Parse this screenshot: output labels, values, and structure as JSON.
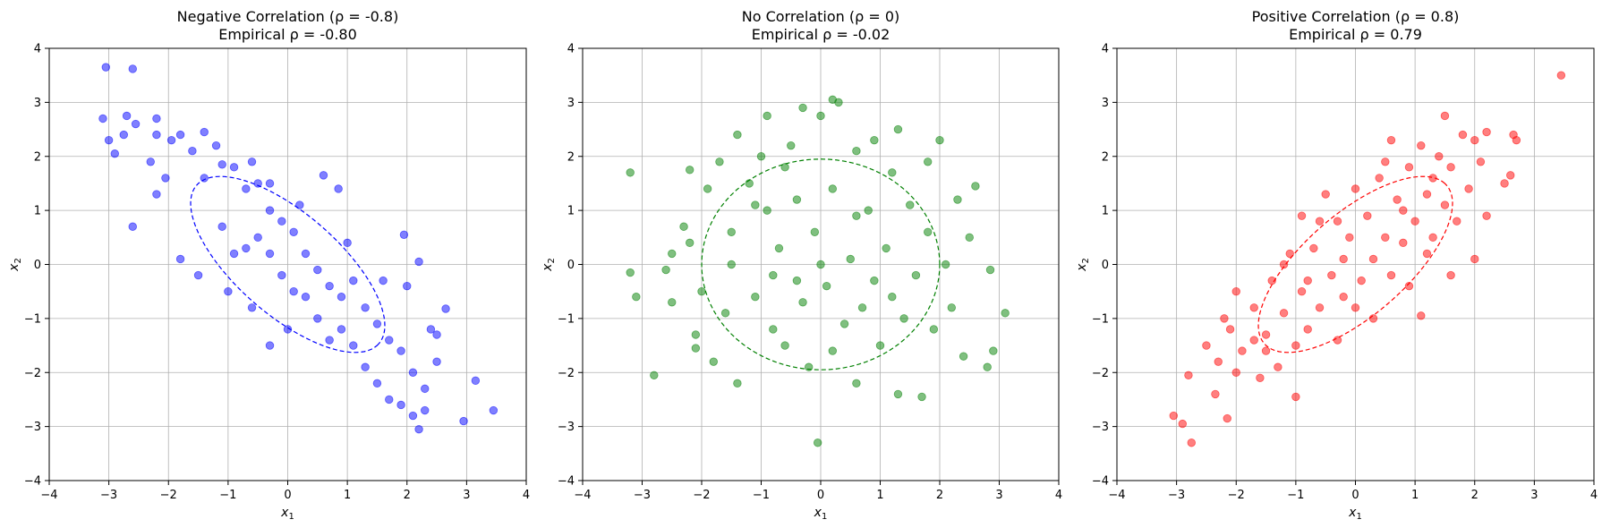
{
  "chart_data": [
    {
      "type": "scatter",
      "title": "Negative Correlation (ρ = -0.8)",
      "subtitle": "Empirical ρ = -0.80",
      "xlabel": "x",
      "xlabel_sub": "1",
      "ylabel": "x",
      "ylabel_sub": "2",
      "xlim": [
        -4,
        4
      ],
      "ylim": [
        -4,
        4
      ],
      "xticks": [
        -4,
        -3,
        -2,
        -1,
        0,
        1,
        2,
        3,
        4
      ],
      "yticks": [
        -4,
        -3,
        -2,
        -1,
        0,
        1,
        2,
        3,
        4
      ],
      "grid": true,
      "color": "#0000ff",
      "alpha": 0.5,
      "rho": -0.8,
      "ellipse": {
        "center": [
          0,
          0
        ],
        "semi_major": 2.12,
        "semi_minor": 0.9,
        "angle_deg": -45,
        "style": "dashed"
      },
      "series": [
        {
          "values": [
            [
              -3.05,
              3.65
            ],
            [
              -2.6,
              3.62
            ],
            [
              -3.1,
              2.7
            ],
            [
              -3.0,
              2.3
            ],
            [
              -2.9,
              2.05
            ],
            [
              -2.75,
              2.4
            ],
            [
              -2.7,
              2.75
            ],
            [
              -2.55,
              2.6
            ],
            [
              -2.6,
              0.7
            ],
            [
              -2.2,
              2.7
            ],
            [
              -2.2,
              2.4
            ],
            [
              -2.3,
              1.9
            ],
            [
              -2.2,
              1.3
            ],
            [
              -2.05,
              1.6
            ],
            [
              -1.95,
              2.3
            ],
            [
              -1.8,
              2.4
            ],
            [
              -1.6,
              2.1
            ],
            [
              -1.4,
              2.45
            ],
            [
              -1.4,
              1.6
            ],
            [
              -1.2,
              2.2
            ],
            [
              -1.1,
              1.85
            ],
            [
              -0.9,
              1.8
            ],
            [
              -1.1,
              0.7
            ],
            [
              -0.9,
              0.2
            ],
            [
              -0.7,
              0.3
            ],
            [
              -0.7,
              1.4
            ],
            [
              -0.5,
              1.5
            ],
            [
              -0.5,
              0.5
            ],
            [
              -0.3,
              1.0
            ],
            [
              -0.3,
              0.2
            ],
            [
              -0.1,
              0.8
            ],
            [
              -0.1,
              -0.2
            ],
            [
              0.1,
              0.6
            ],
            [
              0.1,
              -0.5
            ],
            [
              0.3,
              0.2
            ],
            [
              0.3,
              -0.6
            ],
            [
              0.5,
              -0.1
            ],
            [
              0.5,
              -1.0
            ],
            [
              0.7,
              -0.4
            ],
            [
              0.7,
              -1.4
            ],
            [
              0.9,
              -0.6
            ],
            [
              0.9,
              -1.2
            ],
            [
              1.1,
              -0.3
            ],
            [
              1.1,
              -1.5
            ],
            [
              1.3,
              -0.8
            ],
            [
              1.3,
              -1.9
            ],
            [
              1.5,
              -1.1
            ],
            [
              1.5,
              -2.2
            ],
            [
              1.7,
              -1.4
            ],
            [
              1.7,
              -2.5
            ],
            [
              1.9,
              -1.6
            ],
            [
              1.9,
              -2.6
            ],
            [
              2.1,
              -2.0
            ],
            [
              2.1,
              -2.8
            ],
            [
              2.3,
              -2.3
            ],
            [
              2.2,
              -3.05
            ],
            [
              2.3,
              -2.7
            ],
            [
              2.5,
              -1.8
            ],
            [
              2.5,
              -1.3
            ],
            [
              2.65,
              -0.82
            ],
            [
              2.0,
              -0.4
            ],
            [
              2.2,
              0.05
            ],
            [
              2.4,
              -1.2
            ],
            [
              3.15,
              -2.15
            ],
            [
              2.95,
              -2.9
            ],
            [
              3.45,
              -2.7
            ],
            [
              1.95,
              0.55
            ],
            [
              0.6,
              1.65
            ],
            [
              0.85,
              1.4
            ],
            [
              -0.3,
              -1.5
            ],
            [
              -0.6,
              -0.8
            ],
            [
              0.0,
              -1.2
            ],
            [
              -1.8,
              0.1
            ],
            [
              -1.5,
              -0.2
            ],
            [
              -1.0,
              -0.5
            ],
            [
              -0.3,
              1.5
            ],
            [
              0.2,
              1.1
            ],
            [
              -0.6,
              1.9
            ],
            [
              1.0,
              0.4
            ],
            [
              1.6,
              -0.3
            ]
          ]
        }
      ]
    },
    {
      "type": "scatter",
      "title": "No Correlation (ρ = 0)",
      "subtitle": "Empirical ρ = -0.02",
      "xlabel": "x",
      "xlabel_sub": "1",
      "ylabel": "x",
      "ylabel_sub": "2",
      "xlim": [
        -4,
        4
      ],
      "ylim": [
        -4,
        4
      ],
      "xticks": [
        -4,
        -3,
        -2,
        -1,
        0,
        1,
        2,
        3,
        4
      ],
      "yticks": [
        -4,
        -3,
        -2,
        -1,
        0,
        1,
        2,
        3,
        4
      ],
      "grid": true,
      "color": "#008000",
      "alpha": 0.5,
      "rho": 0,
      "ellipse": {
        "center": [
          0,
          0
        ],
        "semi_major": 2.0,
        "semi_minor": 1.95,
        "angle_deg": 0,
        "style": "dashed"
      },
      "series": [
        {
          "values": [
            [
              -3.2,
              1.7
            ],
            [
              -3.2,
              -0.15
            ],
            [
              -3.1,
              -0.6
            ],
            [
              -2.8,
              -2.05
            ],
            [
              -2.6,
              -0.1
            ],
            [
              -2.5,
              0.2
            ],
            [
              -2.3,
              0.7
            ],
            [
              -2.2,
              1.75
            ],
            [
              -2.1,
              -1.3
            ],
            [
              -2.1,
              -1.55
            ],
            [
              -2.0,
              -0.5
            ],
            [
              -1.9,
              1.4
            ],
            [
              -1.8,
              -1.8
            ],
            [
              -1.7,
              1.9
            ],
            [
              -1.6,
              -0.9
            ],
            [
              -1.5,
              0.6
            ],
            [
              -1.4,
              -2.2
            ],
            [
              -1.4,
              2.4
            ],
            [
              -1.2,
              1.5
            ],
            [
              -1.1,
              -0.6
            ],
            [
              -1.0,
              2.0
            ],
            [
              -0.9,
              1.0
            ],
            [
              -0.9,
              2.75
            ],
            [
              -0.8,
              -1.2
            ],
            [
              -0.7,
              0.3
            ],
            [
              -0.6,
              -1.5
            ],
            [
              -0.5,
              2.2
            ],
            [
              -0.4,
              -0.3
            ],
            [
              -0.4,
              1.2
            ],
            [
              -0.3,
              2.9
            ],
            [
              -0.2,
              -1.9
            ],
            [
              -0.1,
              0.6
            ],
            [
              -0.05,
              -3.3
            ],
            [
              0.0,
              2.75
            ],
            [
              0.1,
              -0.4
            ],
            [
              0.2,
              1.4
            ],
            [
              0.2,
              3.05
            ],
            [
              0.3,
              3.0
            ],
            [
              0.4,
              -1.1
            ],
            [
              0.5,
              0.1
            ],
            [
              0.6,
              2.1
            ],
            [
              0.6,
              -2.2
            ],
            [
              0.7,
              -0.8
            ],
            [
              0.8,
              1.0
            ],
            [
              0.9,
              2.3
            ],
            [
              1.0,
              -1.5
            ],
            [
              1.1,
              0.3
            ],
            [
              1.2,
              -0.6
            ],
            [
              1.3,
              2.5
            ],
            [
              1.3,
              -2.4
            ],
            [
              1.5,
              1.1
            ],
            [
              1.6,
              -0.2
            ],
            [
              1.7,
              -2.45
            ],
            [
              1.8,
              0.6
            ],
            [
              1.9,
              -1.2
            ],
            [
              2.0,
              2.3
            ],
            [
              2.1,
              0.0
            ],
            [
              2.2,
              -0.8
            ],
            [
              2.3,
              1.2
            ],
            [
              2.4,
              -1.7
            ],
            [
              2.5,
              0.5
            ],
            [
              2.6,
              1.45
            ],
            [
              2.8,
              -1.9
            ],
            [
              2.85,
              -0.1
            ],
            [
              2.9,
              -1.6
            ],
            [
              3.1,
              -0.9
            ],
            [
              -2.5,
              -0.7
            ],
            [
              -2.2,
              0.4
            ],
            [
              1.2,
              1.7
            ],
            [
              0.0,
              0.0
            ],
            [
              -0.8,
              -0.2
            ],
            [
              0.6,
              0.9
            ],
            [
              -1.5,
              0.0
            ],
            [
              1.4,
              -1.0
            ],
            [
              -0.3,
              -0.7
            ],
            [
              0.9,
              -0.3
            ],
            [
              -1.1,
              1.1
            ],
            [
              0.2,
              -1.6
            ],
            [
              -0.6,
              1.8
            ],
            [
              1.8,
              1.9
            ]
          ]
        }
      ]
    },
    {
      "type": "scatter",
      "title": "Positive Correlation (ρ = 0.8)",
      "subtitle": "Empirical ρ = 0.79",
      "xlabel": "x",
      "xlabel_sub": "1",
      "ylabel": "x",
      "ylabel_sub": "2",
      "xlim": [
        -4,
        4
      ],
      "ylim": [
        -4,
        4
      ],
      "xticks": [
        -4,
        -3,
        -2,
        -1,
        0,
        1,
        2,
        3,
        4
      ],
      "yticks": [
        -4,
        -3,
        -2,
        -1,
        0,
        1,
        2,
        3,
        4
      ],
      "grid": true,
      "color": "#ff0000",
      "alpha": 0.5,
      "rho": 0.8,
      "ellipse": {
        "center": [
          0,
          0
        ],
        "semi_major": 2.12,
        "semi_minor": 0.9,
        "angle_deg": 45,
        "style": "dashed"
      },
      "series": [
        {
          "values": [
            [
              -3.05,
              -2.8
            ],
            [
              -2.9,
              -2.95
            ],
            [
              -2.75,
              -3.3
            ],
            [
              -2.8,
              -2.05
            ],
            [
              -2.5,
              -1.5
            ],
            [
              -2.35,
              -2.4
            ],
            [
              -2.3,
              -1.8
            ],
            [
              -2.15,
              -2.85
            ],
            [
              -2.1,
              -1.2
            ],
            [
              -2.0,
              -2.0
            ],
            [
              -2.0,
              -0.5
            ],
            [
              -1.9,
              -1.6
            ],
            [
              -1.7,
              -0.8
            ],
            [
              -1.6,
              -2.1
            ],
            [
              -1.5,
              -1.3
            ],
            [
              -1.4,
              -0.3
            ],
            [
              -1.3,
              -1.9
            ],
            [
              -1.2,
              -0.9
            ],
            [
              -1.1,
              0.2
            ],
            [
              -1.0,
              -1.5
            ],
            [
              -1.0,
              -2.45
            ],
            [
              -0.9,
              -0.5
            ],
            [
              -0.9,
              0.9
            ],
            [
              -0.8,
              -1.2
            ],
            [
              -0.7,
              0.3
            ],
            [
              -0.6,
              -0.8
            ],
            [
              -0.5,
              1.3
            ],
            [
              -0.4,
              -0.2
            ],
            [
              -0.3,
              0.8
            ],
            [
              -0.2,
              -0.6
            ],
            [
              -0.1,
              0.5
            ],
            [
              0.0,
              1.4
            ],
            [
              0.1,
              -0.3
            ],
            [
              0.2,
              0.9
            ],
            [
              0.3,
              0.1
            ],
            [
              0.4,
              1.6
            ],
            [
              0.5,
              0.5
            ],
            [
              0.6,
              2.3
            ],
            [
              0.7,
              1.2
            ],
            [
              0.8,
              0.4
            ],
            [
              0.9,
              1.8
            ],
            [
              1.0,
              0.8
            ],
            [
              1.1,
              2.2
            ],
            [
              1.1,
              -0.95
            ],
            [
              1.2,
              1.3
            ],
            [
              1.3,
              0.5
            ],
            [
              1.4,
              2.0
            ],
            [
              1.5,
              1.1
            ],
            [
              1.5,
              2.75
            ],
            [
              1.6,
              1.8
            ],
            [
              1.7,
              0.8
            ],
            [
              1.8,
              2.4
            ],
            [
              1.9,
              1.4
            ],
            [
              2.0,
              0.1
            ],
            [
              2.0,
              2.3
            ],
            [
              2.1,
              1.9
            ],
            [
              2.2,
              0.9
            ],
            [
              2.2,
              2.45
            ],
            [
              2.5,
              1.5
            ],
            [
              2.6,
              1.65
            ],
            [
              2.7,
              2.3
            ],
            [
              2.65,
              2.4
            ],
            [
              3.45,
              3.5
            ],
            [
              -1.5,
              -1.6
            ],
            [
              0.3,
              -1.0
            ],
            [
              -0.3,
              -1.4
            ],
            [
              0.9,
              -0.4
            ],
            [
              -0.6,
              0.8
            ],
            [
              1.6,
              -0.2
            ],
            [
              0.5,
              1.9
            ],
            [
              -1.7,
              -1.4
            ],
            [
              -0.2,
              0.1
            ],
            [
              0.8,
              1.0
            ],
            [
              -0.8,
              -0.3
            ],
            [
              1.2,
              0.2
            ],
            [
              0.0,
              -0.8
            ],
            [
              -1.2,
              0.0
            ],
            [
              0.6,
              -0.2
            ],
            [
              1.3,
              1.6
            ],
            [
              -2.2,
              -1.0
            ]
          ]
        }
      ]
    }
  ]
}
